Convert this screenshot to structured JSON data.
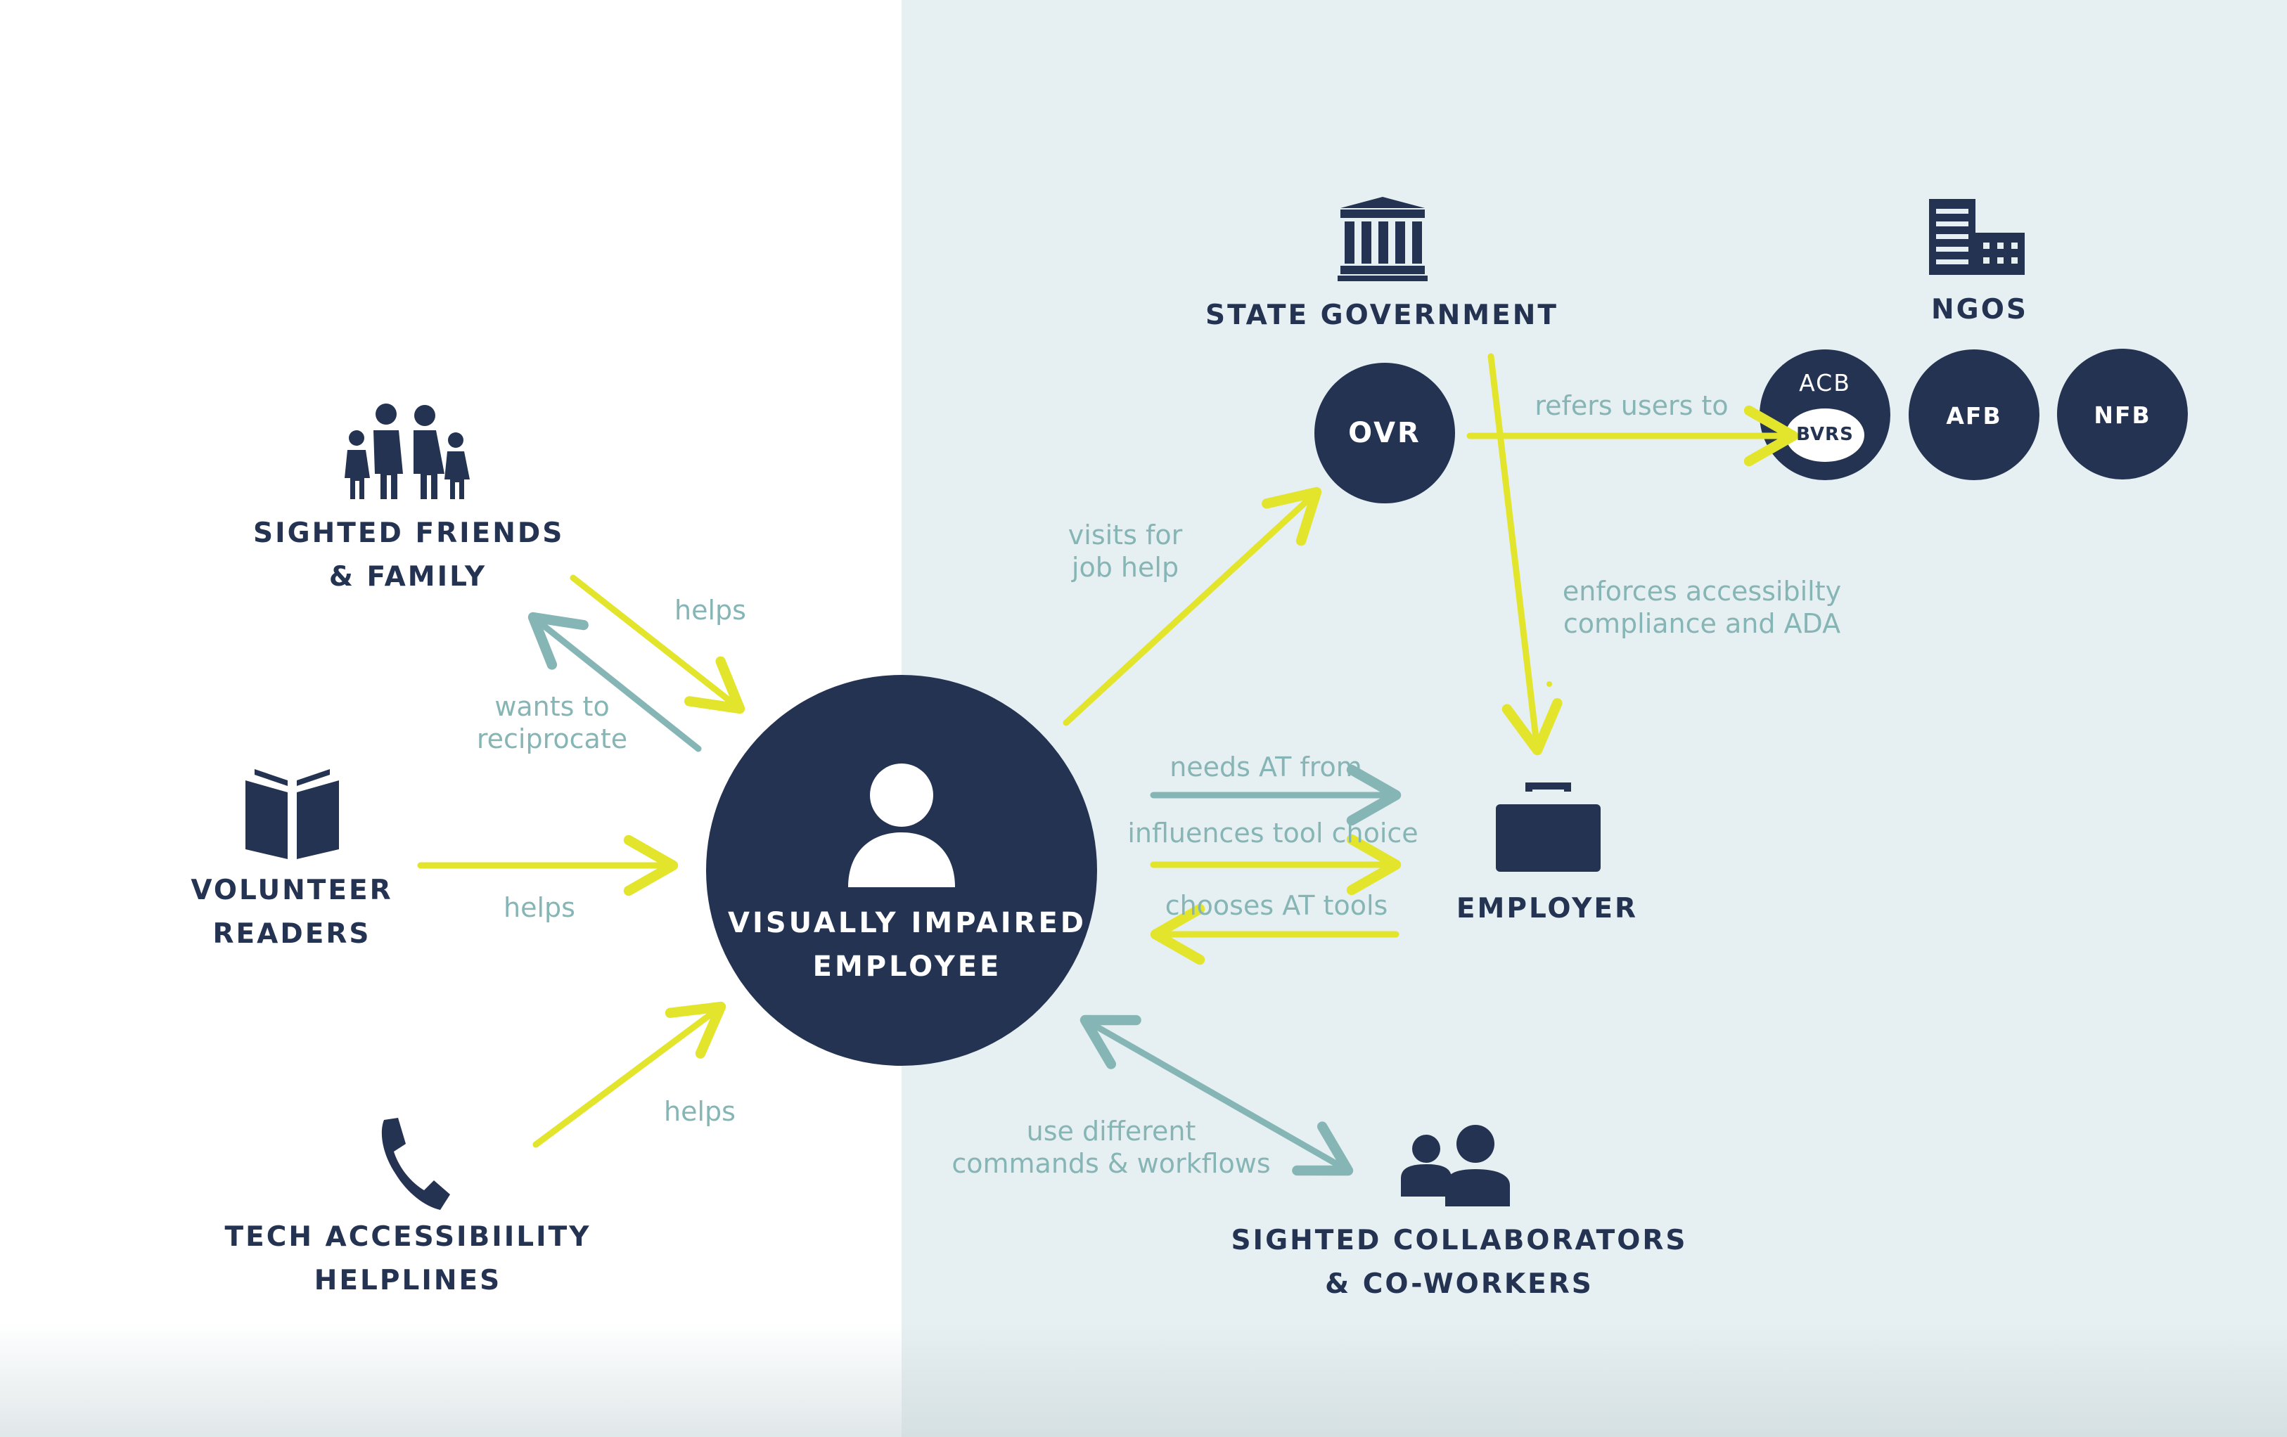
{
  "center": {
    "line1": "VISUALLY IMPAIRED",
    "line2": "EMPLOYEE"
  },
  "nodes": {
    "friends": {
      "line1": "SIGHTED FRIENDS",
      "line2": "& FAMILY"
    },
    "readers": {
      "line1": "VOLUNTEER",
      "line2": "READERS"
    },
    "helplines": {
      "line1": "TECH ACCESSIBIILITY",
      "line2": "HELPLINES"
    },
    "government": {
      "label": "STATE GOVERNMENT"
    },
    "ngos": {
      "label": "NGOS"
    },
    "employer": {
      "label": "EMPLOYER"
    },
    "collaborators": {
      "line1": "SIGHTED COLLABORATORS",
      "line2": "& CO-WORKERS"
    }
  },
  "circles": {
    "ovr": "OVR",
    "acb": "ACB",
    "bvrs": "BVRS",
    "afb": "AFB",
    "nfb": "NFB"
  },
  "relations": {
    "friends_helps": "helps",
    "reciprocate_1": "wants to",
    "reciprocate_2": "reciprocate",
    "readers_helps": "helps",
    "helplines_helps": "helps",
    "visits_1": "visits for",
    "visits_2": "job help",
    "refers": "refers users to",
    "enforces_1": "enforces accessibilty",
    "enforces_2": "compliance and ADA",
    "needs_at": "needs AT from",
    "influences": "influences tool choice",
    "chooses": "chooses AT tools",
    "commands_1": "use different",
    "commands_2": "commands & workflows"
  },
  "colors": {
    "navy": "#243352",
    "yellow": "#e3e52c",
    "teal": "#86b5b5",
    "panel": "#e6eff1"
  },
  "icons": [
    "family-icon",
    "book-icon",
    "phone-icon",
    "government-building-icon",
    "office-building-icon",
    "person-icon",
    "briefcase-icon",
    "people-icon"
  ]
}
